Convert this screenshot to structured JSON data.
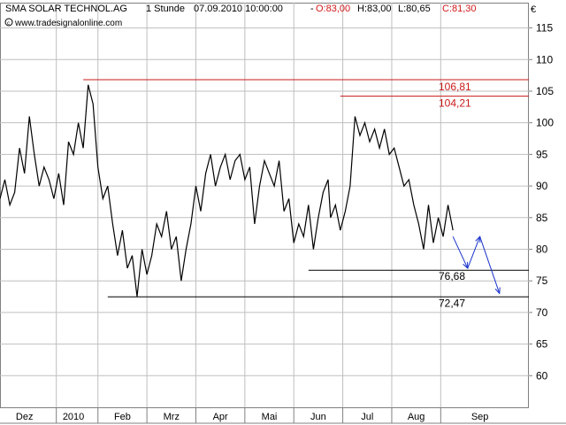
{
  "header": {
    "instrument": "SMA SOLAR TECHNOL.AG",
    "interval": "1 Stunde",
    "timestamp": "07.09.2010 10:00:00",
    "open": "O:83,00",
    "high": "H:83,00",
    "low": "L:80,65",
    "close": "C:81,30",
    "source": "www.tradesignalonline.com",
    "currency": "€"
  },
  "colors": {
    "price": "#000000",
    "resistance": "#c81818",
    "arrows": "#1a33cc",
    "grid": "#bfbfbf",
    "close_text": "#d01818"
  },
  "chart_data": {
    "type": "line",
    "y_axis_position": "right",
    "ylim": [
      55,
      119
    ],
    "yticks": [
      60,
      65,
      70,
      75,
      80,
      85,
      90,
      95,
      100,
      105,
      110,
      115
    ],
    "xticks": [
      {
        "label": "Dez",
        "x": 0.5
      },
      {
        "label": "2010",
        "x": 1.5
      },
      {
        "label": "Feb",
        "x": 2.5
      },
      {
        "label": "Mrz",
        "x": 3.5
      },
      {
        "label": "Apr",
        "x": 4.5
      },
      {
        "label": "Mai",
        "x": 5.5
      },
      {
        "label": "Jun",
        "x": 6.5
      },
      {
        "label": "Jul",
        "x": 7.5
      },
      {
        "label": "Aug",
        "x": 8.5
      },
      {
        "label": "Sep",
        "x": 9.8
      }
    ],
    "month_separators": [
      1.15,
      2.0,
      3.0,
      4.0,
      5.0,
      6.0,
      7.0,
      8.0,
      9.0
    ],
    "xlim": [
      0,
      10.8
    ],
    "series": [
      {
        "x": [
          0.0,
          0.1,
          0.2,
          0.3,
          0.4,
          0.5,
          0.6,
          0.7,
          0.8,
          0.9,
          1.0,
          1.1,
          1.2,
          1.3,
          1.4,
          1.5,
          1.6,
          1.7,
          1.8,
          1.9,
          2.0,
          2.1,
          2.2,
          2.3,
          2.4,
          2.5,
          2.6,
          2.7,
          2.8,
          2.9,
          3.0,
          3.1,
          3.2,
          3.3,
          3.4,
          3.5,
          3.6,
          3.7,
          3.8,
          3.9,
          4.0,
          4.1,
          4.2,
          4.3,
          4.4,
          4.5,
          4.6,
          4.7,
          4.8,
          4.9,
          5.0,
          5.1,
          5.2,
          5.3,
          5.4,
          5.5,
          5.6,
          5.7,
          5.8,
          5.9,
          6.0,
          6.1,
          6.2,
          6.3,
          6.4,
          6.5,
          6.6,
          6.7,
          6.75,
          6.85,
          6.95,
          7.05,
          7.15,
          7.25,
          7.35,
          7.45,
          7.55,
          7.65,
          7.75,
          7.85,
          7.95,
          8.05,
          8.15,
          8.25,
          8.35,
          8.45,
          8.55,
          8.65,
          8.75,
          8.85,
          8.95,
          9.05,
          9.15,
          9.25
        ],
        "y": [
          88,
          91,
          87,
          89,
          96,
          92,
          101,
          95,
          90,
          93,
          91,
          88,
          92,
          87,
          97,
          95,
          100,
          96,
          106,
          103,
          93,
          88,
          90,
          84,
          79,
          83,
          77,
          79,
          72.5,
          80,
          76,
          79,
          84,
          82,
          86,
          80,
          82,
          75,
          80,
          84,
          90,
          86,
          92,
          95,
          90,
          93,
          95,
          91,
          94,
          95,
          91,
          93,
          84,
          90,
          94,
          92,
          90,
          94,
          86,
          88,
          81,
          84,
          82,
          87,
          80,
          85,
          89,
          91,
          85,
          87,
          83,
          86,
          90,
          101,
          98,
          100,
          97,
          99,
          96,
          99,
          95,
          96,
          93,
          90,
          91,
          87,
          84,
          80,
          87,
          81,
          85,
          82,
          87,
          83
        ]
      }
    ],
    "levels": [
      {
        "value": 106.81,
        "label": "106,81",
        "color": "resistance"
      },
      {
        "value": 104.21,
        "label": "104,21",
        "color": "resistance"
      },
      {
        "value": 76.68,
        "label": "76,68",
        "color": "support"
      },
      {
        "value": 72.47,
        "label": "72,47",
        "color": "support"
      }
    ],
    "forecast_arrows": [
      {
        "from": [
          9.25,
          82
        ],
        "to": [
          9.55,
          77
        ]
      },
      {
        "from": [
          9.55,
          77
        ],
        "to": [
          9.8,
          82
        ]
      },
      {
        "from": [
          9.8,
          82
        ],
        "to": [
          10.2,
          73
        ]
      }
    ]
  }
}
